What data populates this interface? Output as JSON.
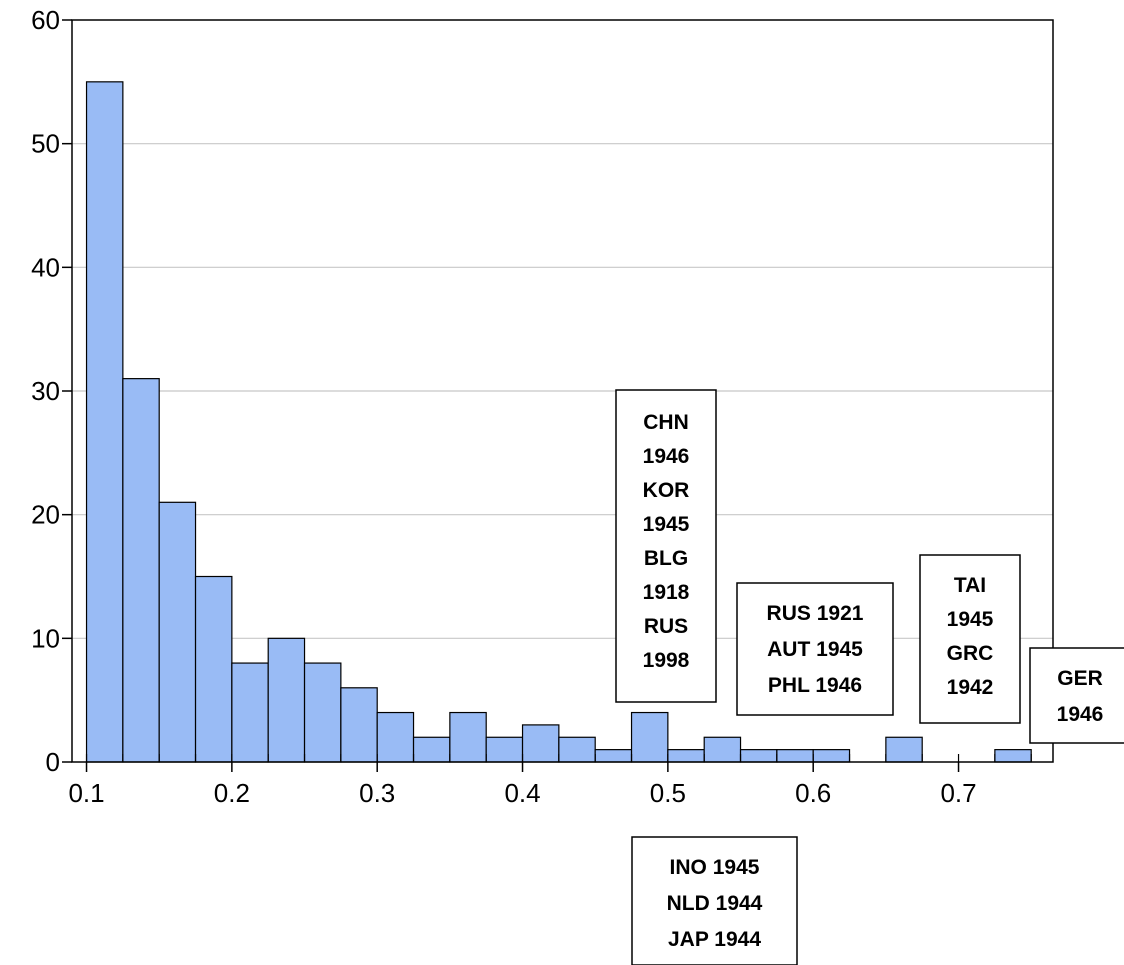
{
  "chart_data": {
    "type": "bar",
    "subtype": "histogram",
    "bin_width": 0.025,
    "x_start": 0.1,
    "values": [
      55,
      31,
      21,
      15,
      8,
      10,
      8,
      6,
      4,
      2,
      4,
      2,
      3,
      2,
      1,
      4,
      1,
      2,
      1,
      1,
      1,
      0,
      2,
      0,
      0,
      1
    ],
    "xlim": [
      0.09,
      0.765
    ],
    "ylim": [
      0,
      60
    ],
    "x_ticks": [
      "0.1",
      "0.2",
      "0.3",
      "0.4",
      "0.5",
      "0.6",
      "0.7"
    ],
    "x_tick_values": [
      0.1,
      0.2,
      0.3,
      0.4,
      0.5,
      0.6,
      0.7
    ],
    "y_ticks": [
      "0",
      "10",
      "20",
      "30",
      "40",
      "50",
      "60"
    ],
    "y_tick_values": [
      0,
      10,
      20,
      30,
      40,
      50,
      60
    ],
    "grid": "horizontal",
    "bar_color": "#99bbf5",
    "title": "",
    "xlabel": "",
    "ylabel": "",
    "annotations": [
      {
        "lines": [
          "CHN",
          "1946",
          "KOR",
          "1945",
          "BLG",
          "1918",
          "RUS",
          "1998"
        ]
      },
      {
        "lines": [
          "RUS 1921",
          "AUT 1945",
          "PHL 1946"
        ]
      },
      {
        "lines": [
          "TAI",
          "1945",
          "GRC",
          "1942"
        ]
      },
      {
        "lines": [
          "GER",
          "1946"
        ]
      },
      {
        "lines": [
          "INO 1945",
          "NLD 1944",
          "JAP 1944"
        ]
      }
    ]
  }
}
